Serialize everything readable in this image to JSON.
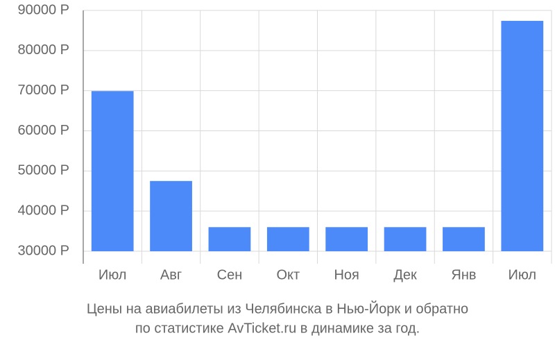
{
  "chart_data": {
    "type": "bar",
    "title": "Цены на авиабилеты из Челябинска в Нью-Йорк и обратно",
    "subtitle": "по статистике AvTicket.ru в динамике за год.",
    "categories": [
      "Июл",
      "Авг",
      "Сен",
      "Окт",
      "Ноя",
      "Дек",
      "Янв",
      "Июл"
    ],
    "values": [
      69900,
      47500,
      36000,
      36000,
      36000,
      36000,
      36000,
      87400
    ],
    "color": "#4d8af9",
    "ylim": [
      30000,
      90000
    ],
    "yticks": [
      {
        "value": 30000,
        "label": "30000 Р"
      },
      {
        "value": 40000,
        "label": "40000 Р"
      },
      {
        "value": 50000,
        "label": "50000 Р"
      },
      {
        "value": 60000,
        "label": "60000 Р"
      },
      {
        "value": 70000,
        "label": "70000 Р"
      },
      {
        "value": 80000,
        "label": "80000 Р"
      },
      {
        "value": 90000,
        "label": "90000 Р"
      }
    ],
    "grid": true
  }
}
